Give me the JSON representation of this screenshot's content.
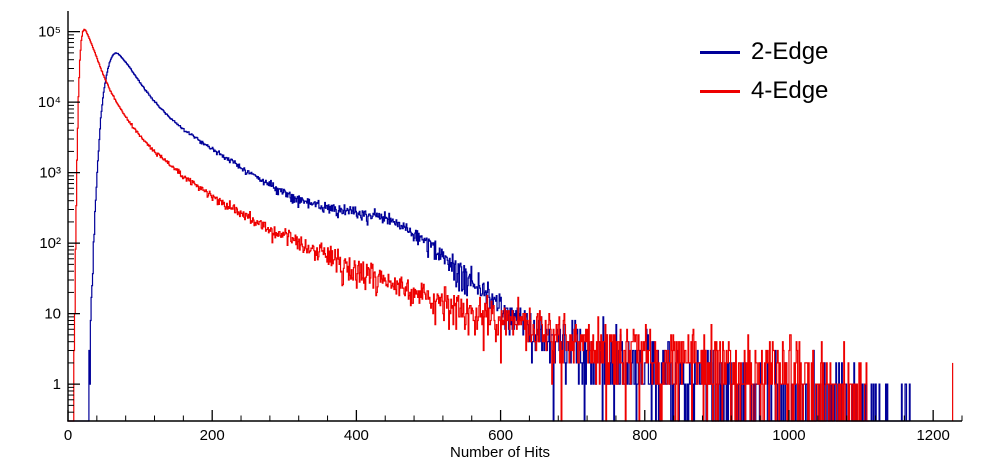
{
  "page": {
    "background": "#ffffff"
  },
  "chart_data": {
    "type": "line",
    "title": "",
    "xlabel": "Number of Hits",
    "ylabel": "",
    "x_axis": {
      "min": 0,
      "max": 1240,
      "major_ticks": [
        0,
        200,
        400,
        600,
        800,
        1000,
        1200
      ],
      "minor_step": 40
    },
    "y_axis": {
      "scale": "log",
      "min": 0.3,
      "max": 170000,
      "major_ticks": [
        1,
        10,
        100,
        1000,
        10000,
        100000
      ],
      "labels": [
        "1",
        "10",
        "10²",
        "10³",
        "10⁴",
        "10⁵"
      ]
    },
    "grid": false,
    "legend_position": "top-right",
    "legend": {
      "entries": [
        {
          "label": "2-Edge",
          "color": "#000099"
        },
        {
          "label": "4-Edge",
          "color": "#ee0000"
        }
      ]
    },
    "bin_width": 1,
    "noise_scale": 1.6,
    "series": [
      {
        "name": "2-Edge",
        "color": "#000099",
        "seed": 1234,
        "x_start": 0,
        "x_end": 1168,
        "anchors": [
          [
            0,
            0
          ],
          [
            26,
            0
          ],
          [
            29,
            2
          ],
          [
            33,
            25
          ],
          [
            37,
            250
          ],
          [
            41,
            1500
          ],
          [
            45,
            6000
          ],
          [
            49,
            14000
          ],
          [
            53,
            24000
          ],
          [
            57,
            36000
          ],
          [
            61,
            45000
          ],
          [
            65,
            50000
          ],
          [
            69,
            49000
          ],
          [
            74,
            43000
          ],
          [
            80,
            36500
          ],
          [
            87,
            29000
          ],
          [
            95,
            22000
          ],
          [
            104,
            16500
          ],
          [
            114,
            12000
          ],
          [
            125,
            8800
          ],
          [
            137,
            6600
          ],
          [
            150,
            5000
          ],
          [
            165,
            3800
          ],
          [
            180,
            2950
          ],
          [
            200,
            2150
          ],
          [
            220,
            1600
          ],
          [
            240,
            1180
          ],
          [
            260,
            880
          ],
          [
            280,
            670
          ],
          [
            300,
            520
          ],
          [
            320,
            420
          ],
          [
            340,
            350
          ],
          [
            360,
            308
          ],
          [
            380,
            283
          ],
          [
            400,
            266
          ],
          [
            415,
            254
          ],
          [
            430,
            238
          ],
          [
            445,
            214
          ],
          [
            460,
            183
          ],
          [
            475,
            148
          ],
          [
            490,
            113
          ],
          [
            505,
            84
          ],
          [
            520,
            61
          ],
          [
            535,
            44
          ],
          [
            550,
            32
          ],
          [
            565,
            24
          ],
          [
            580,
            18
          ],
          [
            600,
            11
          ],
          [
            620,
            8
          ],
          [
            640,
            6
          ],
          [
            660,
            4.8
          ],
          [
            680,
            3.8
          ],
          [
            700,
            3.1
          ],
          [
            730,
            2.5
          ],
          [
            760,
            2.1
          ],
          [
            790,
            1.8
          ],
          [
            820,
            1.55
          ],
          [
            850,
            1.35
          ],
          [
            880,
            1.15
          ],
          [
            910,
            0.95
          ],
          [
            940,
            0.75
          ],
          [
            970,
            0.6
          ],
          [
            1000,
            0.5
          ],
          [
            1040,
            0.4
          ],
          [
            1080,
            0.32
          ],
          [
            1120,
            0.27
          ],
          [
            1168,
            0.22
          ]
        ],
        "spikes": []
      },
      {
        "name": "4-Edge",
        "color": "#ee0000",
        "seed": 99,
        "x_start": 0,
        "x_end": 1112,
        "anchors": [
          [
            0,
            0
          ],
          [
            5,
            0
          ],
          [
            8,
            3
          ],
          [
            10,
            80
          ],
          [
            12,
            1500
          ],
          [
            14,
            12000
          ],
          [
            16,
            40000
          ],
          [
            18,
            75000
          ],
          [
            20,
            100000
          ],
          [
            22,
            108000
          ],
          [
            24,
            104000
          ],
          [
            27,
            90000
          ],
          [
            30,
            76000
          ],
          [
            34,
            60000
          ],
          [
            38,
            47000
          ],
          [
            43,
            34000
          ],
          [
            48,
            25000
          ],
          [
            53,
            19000
          ],
          [
            58,
            14800
          ],
          [
            63,
            11800
          ],
          [
            68,
            9500
          ],
          [
            75,
            7200
          ],
          [
            82,
            5700
          ],
          [
            90,
            4400
          ],
          [
            100,
            3300
          ],
          [
            110,
            2550
          ],
          [
            120,
            2000
          ],
          [
            132,
            1550
          ],
          [
            145,
            1180
          ],
          [
            160,
            880
          ],
          [
            175,
            680
          ],
          [
            190,
            530
          ],
          [
            205,
            420
          ],
          [
            220,
            340
          ],
          [
            240,
            260
          ],
          [
            260,
            200
          ],
          [
            280,
            158
          ],
          [
            300,
            125
          ],
          [
            320,
            100
          ],
          [
            340,
            80
          ],
          [
            360,
            65
          ],
          [
            380,
            52
          ],
          [
            400,
            42
          ],
          [
            420,
            34
          ],
          [
            440,
            28
          ],
          [
            460,
            24
          ],
          [
            480,
            20
          ],
          [
            500,
            17
          ],
          [
            520,
            14.5
          ],
          [
            540,
            12.5
          ],
          [
            560,
            11
          ],
          [
            580,
            9.5
          ],
          [
            600,
            8.2
          ],
          [
            630,
            6.8
          ],
          [
            660,
            5.7
          ],
          [
            690,
            4.8
          ],
          [
            720,
            4.1
          ],
          [
            750,
            3.6
          ],
          [
            780,
            3.1
          ],
          [
            810,
            2.75
          ],
          [
            840,
            2.45
          ],
          [
            870,
            2.2
          ],
          [
            900,
            2
          ],
          [
            930,
            1.8
          ],
          [
            960,
            1.6
          ],
          [
            990,
            1.4
          ],
          [
            1020,
            1.2
          ],
          [
            1050,
            1
          ],
          [
            1075,
            0.75
          ],
          [
            1095,
            0.5
          ],
          [
            1112,
            0.3
          ]
        ],
        "spikes": [
          [
            1227,
            2
          ]
        ]
      }
    ]
  }
}
